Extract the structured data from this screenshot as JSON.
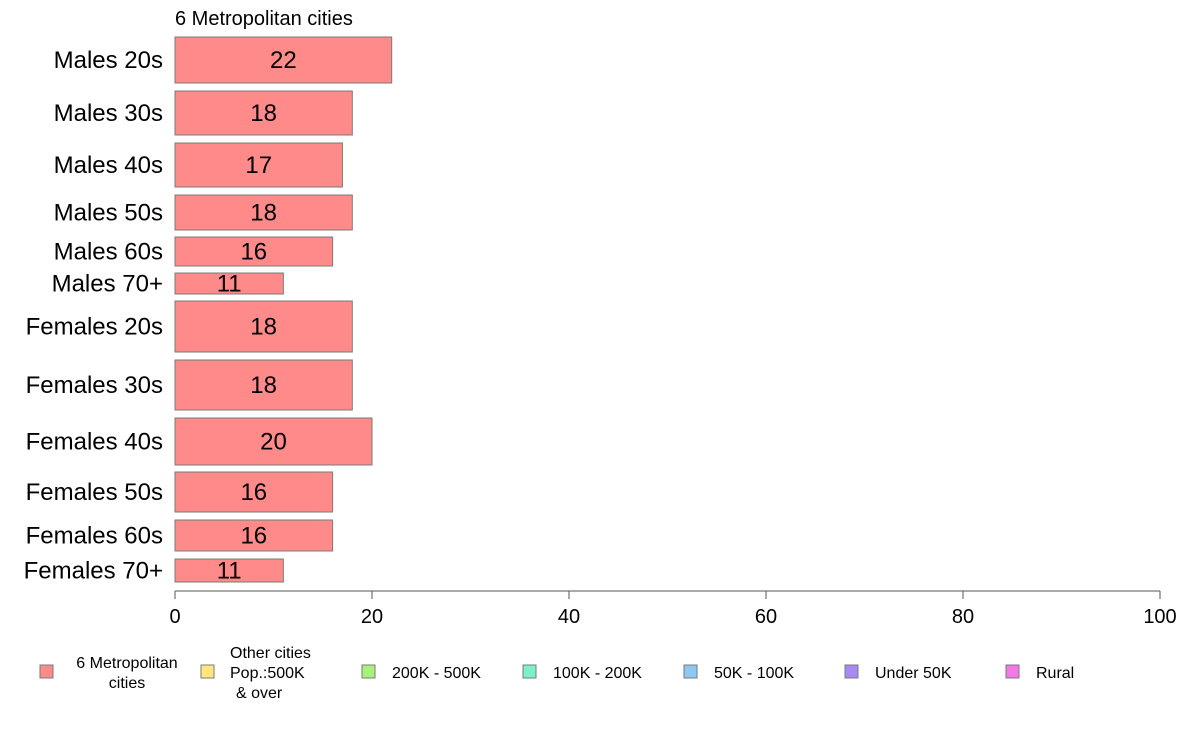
{
  "chart_data": {
    "type": "bar",
    "orientation": "horizontal",
    "stacked": true,
    "title": "6 Metropolitan cities",
    "categories": [
      "Males 20s",
      "Males 30s",
      "Males 40s",
      "Males 50s",
      "Males 60s",
      "Males 70+",
      "Females 20s",
      "Females 30s",
      "Females 40s",
      "Females 50s",
      "Females 60s",
      "Females 70+"
    ],
    "series": [
      {
        "name": "6 Metropolitan cities",
        "color": "#ff8a8a",
        "values": [
          22,
          18,
          17,
          18,
          16,
          11,
          18,
          18,
          20,
          16,
          16,
          11
        ]
      }
    ],
    "data_labels": [
      "22",
      "18",
      "17",
      "18",
      "16",
      "11",
      "18",
      "18",
      "20",
      "16",
      "16",
      "11"
    ],
    "xlim": [
      0,
      100
    ],
    "xticks": [
      "0",
      "20",
      "40",
      "60",
      "80",
      "100"
    ],
    "xlabel": "",
    "ylabel": "",
    "grid": false,
    "legend_position": "bottom",
    "legend": [
      {
        "lines": [
          "6 Metropolitan",
          "cities"
        ],
        "color": "#ff8a8a"
      },
      {
        "lines": [
          "Other cities",
          "Pop.:500K",
          "& over"
        ],
        "color": "#ffe680"
      },
      {
        "lines": [
          "200K - 500K"
        ],
        "color": "#a6f27a"
      },
      {
        "lines": [
          "100K - 200K"
        ],
        "color": "#7af2c4"
      },
      {
        "lines": [
          "50K - 100K"
        ],
        "color": "#8cc8f2"
      },
      {
        "lines": [
          "Under 50K"
        ],
        "color": "#a88af2"
      },
      {
        "lines": [
          "Rural"
        ],
        "color": "#f27ae6"
      }
    ]
  }
}
